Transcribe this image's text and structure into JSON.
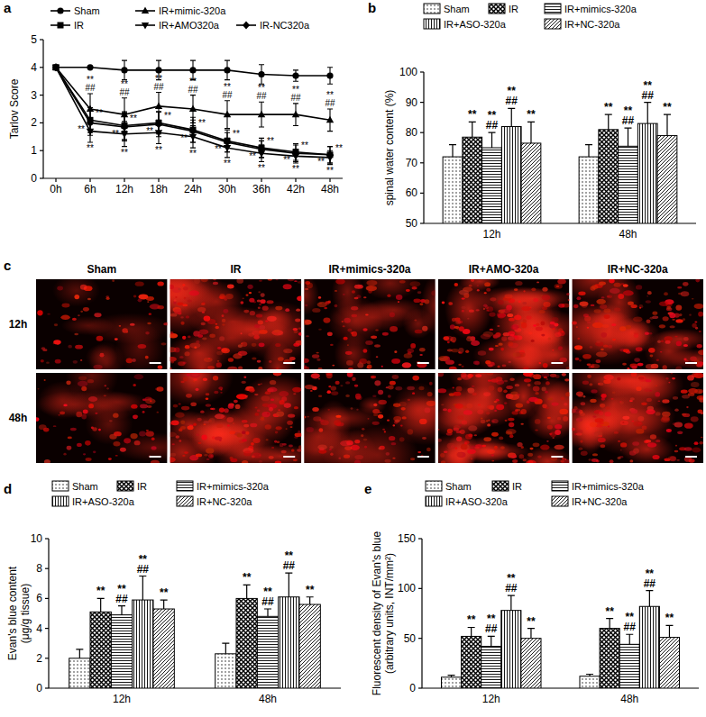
{
  "chart_data": [
    {
      "type": "line",
      "title": "a",
      "ylabel": "Tarlov Score",
      "legend": "top",
      "grid": false,
      "categories": [
        "0h",
        "6h",
        "12h",
        "18h",
        "24h",
        "30h",
        "36h",
        "42h",
        "48h"
      ],
      "ylim": [
        0,
        5
      ],
      "yticks": [
        0,
        1,
        2,
        3,
        4,
        5
      ],
      "series": [
        {
          "name": "Sham",
          "color": "#000000",
          "marker": "circle",
          "values": [
            4,
            4,
            3.9,
            3.9,
            3.9,
            3.9,
            3.75,
            3.7,
            3.7
          ],
          "errors": [
            0,
            0,
            0.35,
            0.35,
            0.35,
            0.35,
            0.35,
            0.2,
            0.3
          ]
        },
        {
          "name": "IR",
          "color": "#000000",
          "marker": "square",
          "values": [
            4,
            2.1,
            1.9,
            2.0,
            1.75,
            1.35,
            1.1,
            0.95,
            0.85
          ],
          "errors": [
            0,
            0.45,
            0.5,
            0.4,
            0.45,
            0.4,
            0.35,
            0.3,
            0.3
          ],
          "annotations": [
            null,
            "**",
            "**",
            "**",
            "**",
            "**",
            "**",
            "**",
            "**"
          ]
        },
        {
          "name": "IR+mimic-320a",
          "color": "#000000",
          "marker": "triangle-up",
          "values": [
            4,
            2.5,
            2.3,
            2.6,
            2.5,
            2.3,
            2.3,
            2.3,
            2.1
          ],
          "errors": [
            0,
            0.55,
            0.6,
            0.5,
            0.5,
            0.5,
            0.45,
            0.4,
            0.4
          ],
          "annotations": [
            null,
            "**\n##",
            "**\n##",
            "**\n##",
            "**\n##",
            "**\n##",
            "**\n##",
            "**\n##",
            "**\n##"
          ]
        },
        {
          "name": "IR+AMO320a",
          "color": "#000000",
          "marker": "triangle-down",
          "values": [
            4,
            1.7,
            1.6,
            1.65,
            1.5,
            1.1,
            0.9,
            0.8,
            0.75
          ],
          "errors": [
            0,
            0.4,
            0.45,
            0.4,
            0.4,
            0.35,
            0.3,
            0.25,
            0.25
          ],
          "annotations": [
            null,
            "**",
            "**",
            "**",
            "**",
            "**",
            "**",
            "**",
            "**"
          ]
        },
        {
          "name": "IR-NC320a",
          "color": "#000000",
          "marker": "diamond",
          "values": [
            4,
            2.0,
            1.85,
            1.95,
            1.7,
            1.3,
            1.05,
            0.9,
            0.85
          ],
          "errors": [
            0,
            0.45,
            0.5,
            0.45,
            0.4,
            0.35,
            0.3,
            0.3,
            0.3
          ],
          "annotations": [
            null,
            "**",
            "**",
            "**",
            "**",
            "**",
            "**",
            "**",
            "**"
          ]
        }
      ]
    },
    {
      "type": "bar",
      "title": "b",
      "ylabel": "spinal water content (%)",
      "legend": "top",
      "grid": false,
      "categories": [
        "12h",
        "48h"
      ],
      "ylim": [
        50,
        100
      ],
      "yticks": [
        50,
        60,
        70,
        80,
        90,
        100
      ],
      "series": [
        {
          "name": "Sham",
          "color": "#000000",
          "values": [
            72,
            72
          ],
          "errors": [
            4,
            4
          ]
        },
        {
          "name": "IR",
          "color": "#000000",
          "values": [
            78.5,
            81
          ],
          "errors": [
            5,
            5
          ],
          "annotations": [
            "**",
            "**"
          ]
        },
        {
          "name": "IR+mimics-320a",
          "color": "#000000",
          "values": [
            75,
            75.5
          ],
          "errors": [
            5,
            6
          ],
          "annotations": [
            "**\n##",
            "**\n##"
          ]
        },
        {
          "name": "IR+ASO-320a",
          "color": "#000000",
          "values": [
            82,
            83
          ],
          "errors": [
            6,
            7
          ],
          "annotations": [
            "**\n##",
            "**\n##"
          ]
        },
        {
          "name": "IR+NC-320a",
          "color": "#000000",
          "values": [
            76.5,
            79
          ],
          "errors": [
            7,
            7
          ],
          "annotations": [
            "**",
            "**"
          ]
        }
      ]
    },
    {
      "type": "bar",
      "title": "d",
      "ylabel": "Evan's blue content\n(μg/g tissue)",
      "legend": "top",
      "grid": false,
      "categories": [
        "12h",
        "48h"
      ],
      "ylim": [
        0,
        10
      ],
      "yticks": [
        0,
        2,
        4,
        6,
        8,
        10
      ],
      "series": [
        {
          "name": "Sham",
          "color": "#000000",
          "values": [
            2.0,
            2.3
          ],
          "errors": [
            0.6,
            0.7
          ]
        },
        {
          "name": "IR",
          "color": "#000000",
          "values": [
            5.1,
            6.0
          ],
          "errors": [
            0.9,
            0.9
          ],
          "annotations": [
            "**",
            "**"
          ]
        },
        {
          "name": "IR+mimics-320a",
          "color": "#000000",
          "values": [
            4.9,
            4.8
          ],
          "errors": [
            0.6,
            0.5
          ],
          "annotations": [
            "**\n##",
            "**\n##"
          ]
        },
        {
          "name": "IR+ASO-320a",
          "color": "#000000",
          "values": [
            5.9,
            6.1
          ],
          "errors": [
            1.6,
            1.6
          ],
          "annotations": [
            "**\n##",
            "**\n##"
          ]
        },
        {
          "name": "IR+NC-320a",
          "color": "#000000",
          "values": [
            5.3,
            5.6
          ],
          "errors": [
            0.6,
            0.5
          ],
          "annotations": [
            "**",
            "**"
          ]
        }
      ]
    },
    {
      "type": "bar",
      "title": "e",
      "ylabel": "Fluorescent density of Evan's blue\n(arbitrary units, INT/mm²)",
      "legend": "top",
      "grid": false,
      "categories": [
        "12h",
        "48h"
      ],
      "ylim": [
        0,
        150
      ],
      "yticks": [
        0,
        50,
        100,
        150
      ],
      "series": [
        {
          "name": "Sham",
          "color": "#000000",
          "values": [
            11,
            12
          ],
          "errors": [
            2,
            2
          ]
        },
        {
          "name": "IR",
          "color": "#000000",
          "values": [
            52,
            60
          ],
          "errors": [
            9,
            10
          ],
          "annotations": [
            "**",
            "**"
          ]
        },
        {
          "name": "IR+mimics-320a",
          "color": "#000000",
          "values": [
            42,
            44
          ],
          "errors": [
            10,
            10
          ],
          "annotations": [
            "**\n##",
            "**\n##"
          ]
        },
        {
          "name": "IR+ASO-320a",
          "color": "#000000",
          "values": [
            78,
            82
          ],
          "errors": [
            15,
            16
          ],
          "annotations": [
            "**\n##",
            "**\n##"
          ]
        },
        {
          "name": "IR+NC-320a",
          "color": "#000000",
          "values": [
            50,
            51
          ],
          "errors": [
            10,
            12
          ],
          "annotations": [
            "**",
            "**"
          ]
        }
      ]
    }
  ],
  "image_panel": {
    "title": "c",
    "columns": [
      "Sham",
      "IR",
      "IR+mimics-320a",
      "IR+AMO-320a",
      "IR+NC-320a"
    ],
    "rows": [
      "12h",
      "48h"
    ]
  }
}
